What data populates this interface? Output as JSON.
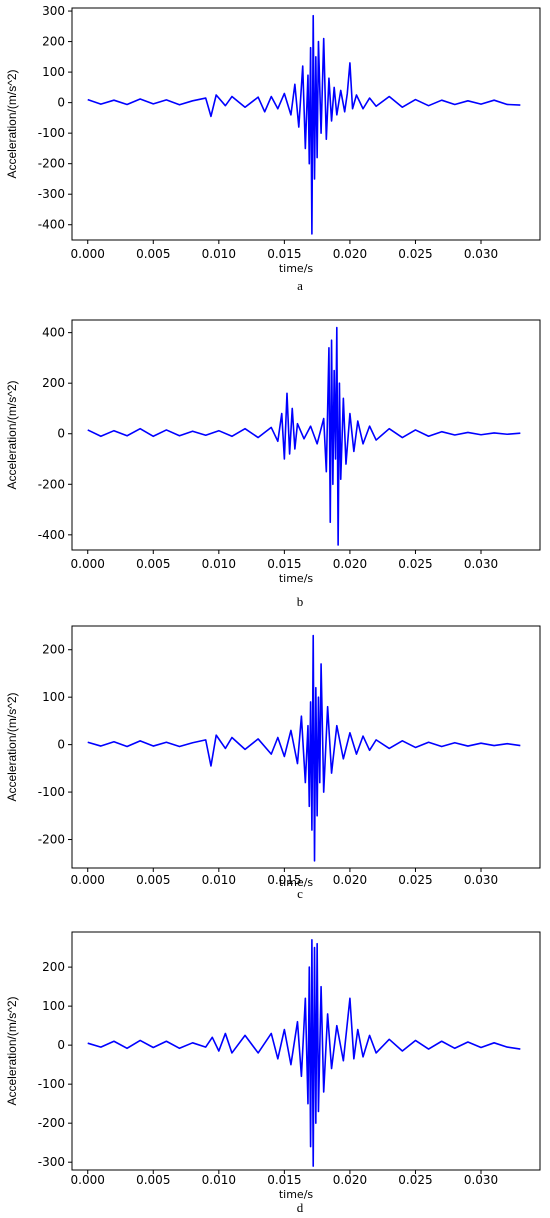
{
  "figure": {
    "line_color": "#0000ff"
  },
  "chart_data": [
    {
      "type": "line",
      "caption": "a",
      "xlabel": "time/s",
      "ylabel": "Acceleration/(m/s^2)",
      "xlim": [
        -0.0012,
        0.0345
      ],
      "ylim": [
        -450,
        310
      ],
      "xticks": [
        0.0,
        0.005,
        0.01,
        0.015,
        0.02,
        0.025,
        0.03
      ],
      "xtick_labels": [
        "0.000",
        "0.005",
        "0.010",
        "0.015",
        "0.020",
        "0.025",
        "0.030"
      ],
      "yticks": [
        -400,
        -300,
        -200,
        -100,
        0,
        100,
        200,
        300
      ],
      "ytick_labels": [
        "-400",
        "-300",
        "-200",
        "-100",
        "0",
        "100",
        "200",
        "300"
      ],
      "series": [
        {
          "color": "#0000ff",
          "x": [
            0.0,
            0.001,
            0.002,
            0.003,
            0.004,
            0.005,
            0.006,
            0.007,
            0.008,
            0.009,
            0.0094,
            0.0098,
            0.0105,
            0.011,
            0.012,
            0.013,
            0.0135,
            0.014,
            0.0145,
            0.015,
            0.0155,
            0.0158,
            0.0161,
            0.0164,
            0.0166,
            0.0168,
            0.0169,
            0.017,
            0.0171,
            0.0172,
            0.0173,
            0.0174,
            0.0175,
            0.0176,
            0.0178,
            0.018,
            0.0182,
            0.0184,
            0.0186,
            0.0188,
            0.019,
            0.0193,
            0.0196,
            0.0198,
            0.02,
            0.0202,
            0.0205,
            0.021,
            0.0215,
            0.022,
            0.023,
            0.024,
            0.025,
            0.026,
            0.027,
            0.028,
            0.029,
            0.03,
            0.031,
            0.032,
            0.033
          ],
          "y": [
            10,
            -5,
            8,
            -6,
            12,
            -4,
            9,
            -7,
            6,
            15,
            -45,
            25,
            -10,
            20,
            -15,
            18,
            -30,
            20,
            -20,
            30,
            -40,
            60,
            -80,
            120,
            -150,
            90,
            -200,
            180,
            -430,
            285,
            -250,
            150,
            -180,
            200,
            -100,
            210,
            -120,
            80,
            -60,
            50,
            -40,
            40,
            -30,
            30,
            130,
            -20,
            25,
            -20,
            15,
            -12,
            20,
            -15,
            10,
            -10,
            8,
            -6,
            6,
            -5,
            8,
            -6,
            -8
          ]
        }
      ]
    },
    {
      "type": "line",
      "caption": "b",
      "xlabel": "time/s",
      "ylabel": "Acceleration/(m/s^2)",
      "xlim": [
        -0.0012,
        0.0345
      ],
      "ylim": [
        -460,
        450
      ],
      "xticks": [
        0.0,
        0.005,
        0.01,
        0.015,
        0.02,
        0.025,
        0.03
      ],
      "xtick_labels": [
        "0.000",
        "0.005",
        "0.010",
        "0.015",
        "0.020",
        "0.025",
        "0.030"
      ],
      "yticks": [
        -400,
        -200,
        0,
        200,
        400
      ],
      "ytick_labels": [
        "-400",
        "-200",
        "0",
        "200",
        "400"
      ],
      "series": [
        {
          "color": "#0000ff",
          "x": [
            0.0,
            0.001,
            0.002,
            0.003,
            0.004,
            0.005,
            0.006,
            0.007,
            0.008,
            0.009,
            0.01,
            0.011,
            0.012,
            0.013,
            0.014,
            0.0145,
            0.0148,
            0.015,
            0.0152,
            0.0154,
            0.0156,
            0.0158,
            0.016,
            0.0165,
            0.017,
            0.0175,
            0.018,
            0.0182,
            0.0184,
            0.0185,
            0.0186,
            0.0187,
            0.0188,
            0.0189,
            0.019,
            0.0191,
            0.0192,
            0.0193,
            0.0195,
            0.0197,
            0.02,
            0.0203,
            0.0206,
            0.021,
            0.0215,
            0.022,
            0.023,
            0.024,
            0.025,
            0.026,
            0.027,
            0.028,
            0.029,
            0.03,
            0.031,
            0.032,
            0.033
          ],
          "y": [
            15,
            -10,
            12,
            -8,
            20,
            -10,
            15,
            -8,
            10,
            -6,
            12,
            -10,
            20,
            -15,
            25,
            -30,
            80,
            -100,
            160,
            -80,
            100,
            -60,
            40,
            -20,
            30,
            -40,
            60,
            -150,
            340,
            -350,
            370,
            -200,
            250,
            -100,
            420,
            -440,
            200,
            -180,
            140,
            -120,
            80,
            -70,
            50,
            -40,
            30,
            -25,
            20,
            -15,
            15,
            -10,
            8,
            -5,
            5,
            -4,
            3,
            -2,
            2
          ]
        }
      ]
    },
    {
      "type": "line",
      "caption": "c",
      "xlabel": "time/s",
      "ylabel": "Acceleration/(m/s^2)",
      "xlim": [
        -0.0012,
        0.0345
      ],
      "ylim": [
        -260,
        250
      ],
      "xticks": [
        0.0,
        0.005,
        0.01,
        0.015,
        0.02,
        0.025,
        0.03
      ],
      "xtick_labels": [
        "0.000",
        "0.005",
        "0.010",
        "0.015",
        "0.020",
        "0.025",
        "0.030"
      ],
      "yticks": [
        -200,
        -100,
        0,
        100,
        200
      ],
      "ytick_labels": [
        "-200",
        "-100",
        "0",
        "100",
        "200"
      ],
      "series": [
        {
          "color": "#0000ff",
          "x": [
            0.0,
            0.001,
            0.002,
            0.003,
            0.004,
            0.005,
            0.006,
            0.007,
            0.008,
            0.009,
            0.0094,
            0.0098,
            0.0105,
            0.011,
            0.012,
            0.013,
            0.014,
            0.0145,
            0.015,
            0.0155,
            0.016,
            0.0163,
            0.0166,
            0.0168,
            0.0169,
            0.017,
            0.0171,
            0.0172,
            0.0173,
            0.0174,
            0.0175,
            0.0176,
            0.0177,
            0.0178,
            0.018,
            0.0183,
            0.0186,
            0.019,
            0.0195,
            0.02,
            0.0205,
            0.021,
            0.0215,
            0.022,
            0.023,
            0.024,
            0.025,
            0.026,
            0.027,
            0.028,
            0.029,
            0.03,
            0.031,
            0.032,
            0.033
          ],
          "y": [
            5,
            -3,
            6,
            -4,
            8,
            -3,
            5,
            -4,
            4,
            10,
            -45,
            20,
            -8,
            15,
            -10,
            12,
            -20,
            15,
            -25,
            30,
            -40,
            60,
            -80,
            40,
            -130,
            90,
            -180,
            230,
            -245,
            120,
            -150,
            100,
            -80,
            170,
            -100,
            80,
            -60,
            40,
            -30,
            25,
            -20,
            18,
            -12,
            10,
            -8,
            8,
            -6,
            5,
            -4,
            4,
            -3,
            3,
            -2,
            2,
            -2
          ]
        }
      ]
    },
    {
      "type": "line",
      "caption": "d",
      "xlabel": "time/s",
      "ylabel": "Acceleration/(m/s^2)",
      "xlim": [
        -0.0012,
        0.0345
      ],
      "ylim": [
        -320,
        290
      ],
      "xticks": [
        0.0,
        0.005,
        0.01,
        0.015,
        0.02,
        0.025,
        0.03
      ],
      "xtick_labels": [
        "0.000",
        "0.005",
        "0.010",
        "0.015",
        "0.020",
        "0.025",
        "0.030"
      ],
      "yticks": [
        -300,
        -200,
        -100,
        0,
        100,
        200
      ],
      "ytick_labels": [
        "-300",
        "-200",
        "-100",
        "0",
        "100",
        "200"
      ],
      "series": [
        {
          "color": "#0000ff",
          "x": [
            0.0,
            0.001,
            0.002,
            0.003,
            0.004,
            0.005,
            0.006,
            0.007,
            0.008,
            0.009,
            0.0095,
            0.01,
            0.0105,
            0.011,
            0.012,
            0.013,
            0.014,
            0.0145,
            0.015,
            0.0155,
            0.016,
            0.0163,
            0.0166,
            0.0168,
            0.0169,
            0.017,
            0.0171,
            0.0172,
            0.0173,
            0.0174,
            0.0175,
            0.0176,
            0.0178,
            0.018,
            0.0183,
            0.0186,
            0.019,
            0.0195,
            0.02,
            0.0203,
            0.0206,
            0.021,
            0.0215,
            0.022,
            0.023,
            0.024,
            0.025,
            0.026,
            0.027,
            0.028,
            0.029,
            0.03,
            0.031,
            0.032,
            0.033
          ],
          "y": [
            5,
            -5,
            10,
            -8,
            12,
            -6,
            10,
            -8,
            6,
            -5,
            20,
            -15,
            30,
            -20,
            25,
            -20,
            30,
            -35,
            40,
            -50,
            60,
            -80,
            120,
            -150,
            200,
            -260,
            270,
            -310,
            250,
            -200,
            260,
            -170,
            150,
            -120,
            80,
            -60,
            50,
            -40,
            120,
            -35,
            40,
            -30,
            25,
            -20,
            15,
            -15,
            12,
            -10,
            10,
            -8,
            8,
            -6,
            6,
            -5,
            -10
          ]
        }
      ]
    }
  ]
}
